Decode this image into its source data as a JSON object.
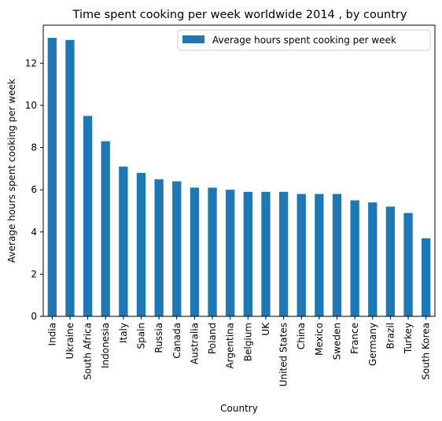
{
  "chart_data": {
    "type": "bar",
    "title": "Time spent cooking per week worldwide 2014 , by country",
    "xlabel": "Country",
    "ylabel": "Average hours spent cooking per week",
    "ylim": [
      0,
      13.8
    ],
    "yticks": [
      0,
      2,
      4,
      6,
      8,
      10,
      12
    ],
    "grid": false,
    "legend_position": "top-right",
    "bar_color": "#1f77b4",
    "categories": [
      "India",
      "Ukraine",
      "South Africa",
      "Indonesia",
      "Italy",
      "Spain",
      "Russia",
      "Canada",
      "Australia",
      "Poland",
      "Argentina",
      "Belgium",
      "UK",
      "United States",
      "China",
      "Mexico",
      "Sweden",
      "France",
      "Germany",
      "Brazil",
      "Turkey",
      "South Korea"
    ],
    "series": [
      {
        "name": "Average hours spent cooking per week",
        "values": [
          13.2,
          13.1,
          9.5,
          8.3,
          7.1,
          6.8,
          6.5,
          6.4,
          6.1,
          6.1,
          6.0,
          5.9,
          5.9,
          5.9,
          5.8,
          5.8,
          5.8,
          5.5,
          5.4,
          5.2,
          4.9,
          3.7
        ]
      }
    ]
  }
}
